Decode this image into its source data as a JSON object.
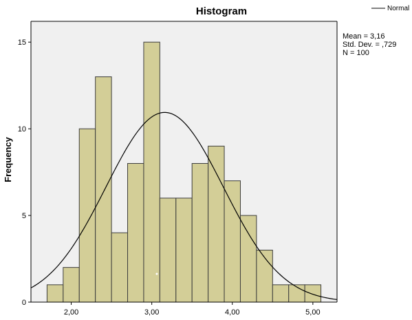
{
  "chart_data": {
    "type": "bar",
    "title": "Histogram",
    "xlabel": "",
    "ylabel": "Frequency",
    "bin_width": 0.2,
    "bin_starts": [
      1.7,
      1.9,
      2.1,
      2.3,
      2.5,
      2.7,
      2.9,
      3.1,
      3.3,
      3.5,
      3.7,
      3.9,
      4.1,
      4.3,
      4.5,
      4.7,
      4.9
    ],
    "values": [
      1,
      2,
      10,
      13,
      4,
      8,
      15,
      6,
      6,
      8,
      9,
      7,
      5,
      3,
      1,
      1,
      1
    ],
    "xlim": [
      1.5,
      5.3
    ],
    "ylim": [
      0,
      16.2
    ],
    "x_ticks": [
      2,
      3,
      4,
      5
    ],
    "x_tick_labels": [
      "2,00",
      "3,00",
      "4,00",
      "5,00"
    ],
    "y_ticks": [
      0,
      5,
      10,
      15
    ],
    "y_tick_labels": [
      "0",
      "5",
      "10",
      "15"
    ],
    "normal_curve": {
      "mean": 3.16,
      "sd": 0.729,
      "n": 100
    },
    "legend": {
      "label": "Normal",
      "position": "top-right"
    },
    "stats": [
      "Mean = 3,16",
      "Std. Dev. = ,729",
      "N = 100"
    ],
    "colors": {
      "plot_background": "#f0f0f0",
      "bar_fill": "#d3ce97",
      "bar_stroke": "#3c3c3c",
      "curve": "#000000"
    },
    "grid": false
  }
}
